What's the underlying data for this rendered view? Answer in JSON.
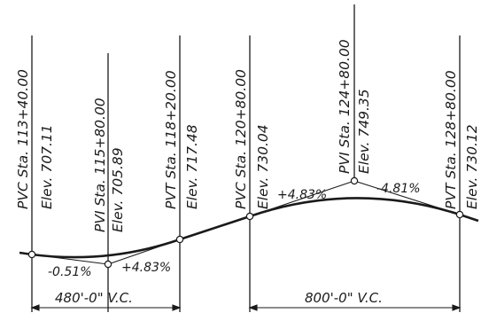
{
  "stations": [
    {
      "id": "pvc1",
      "label": "PVC Sta. 113+40.00",
      "elev": "Elev. 707.11"
    },
    {
      "id": "pvi1",
      "label": "PVI Sta. 115+80.00",
      "elev": "Elev. 705.89"
    },
    {
      "id": "pvt1",
      "label": "PVT Sta. 118+20.00",
      "elev": "Elev. 717.48"
    },
    {
      "id": "pvc2",
      "label": "PVC Sta. 120+80.00",
      "elev": "Elev. 730.04"
    },
    {
      "id": "pvi2",
      "label": "PVI Sta. 124+80.00",
      "elev": "Elev. 749.35"
    },
    {
      "id": "pvt2",
      "label": "PVT Sta. 128+80.00",
      "elev": "Elev. 730.12"
    }
  ],
  "grades": {
    "g1": "-0.51%",
    "g2": "+4.83%",
    "g3": "+4.83%",
    "g4": "-4.81%"
  },
  "curves": {
    "sag_length": "480'-0\" V.C.",
    "crest_length": "800'-0\" V.C."
  },
  "colors": {
    "ink": "#1a1a1a",
    "paper": "#ffffff"
  }
}
